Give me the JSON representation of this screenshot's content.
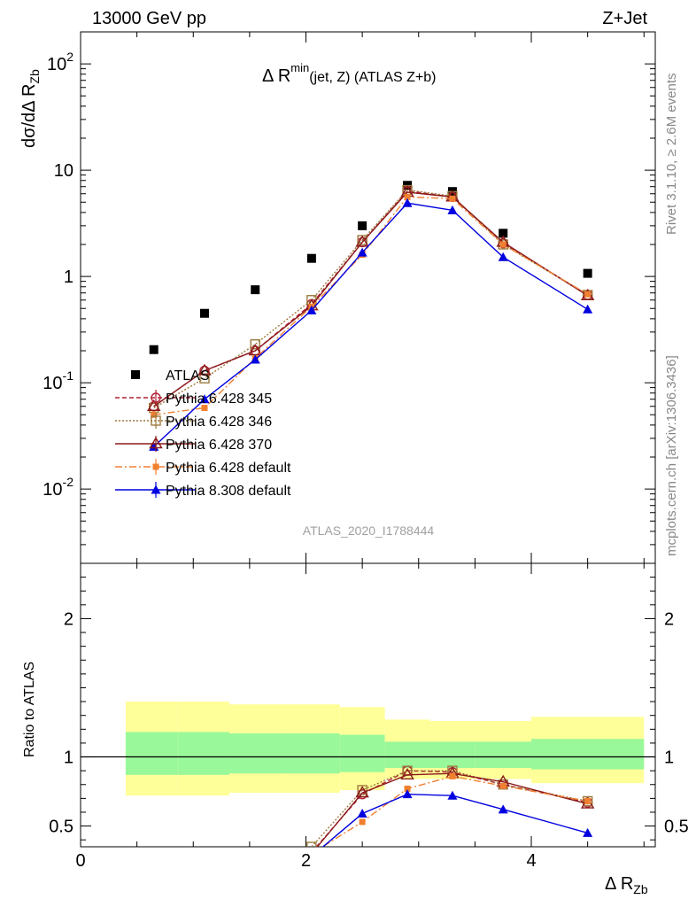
{
  "header": {
    "beam": "13000 GeV pp",
    "process": "Z+Jet"
  },
  "sidebar": {
    "rivet": "Rivet 3.1.10, ≥ 2.6M events",
    "source": "mcplots.cern.ch [arXiv:1306.3436]"
  },
  "colors": {
    "atlas": "#000000",
    "p345": "#b22234",
    "p346": "#9c7a3c",
    "p370": "#8b1a1a",
    "p6def": "#f08030",
    "p8def": "#0000e0",
    "band_inner": "#99f899",
    "band_outer": "#ffff99"
  },
  "chart_data": [
    {
      "type": "scatter",
      "title_main": "Δ R",
      "title_sup": "min",
      "title_rest": "(jet, Z) (ATLAS Z+b)",
      "ylabel_main": "dσ/dΔ R",
      "ylabel_sub": "Zb",
      "yscale": "log",
      "ylim": [
        0.002,
        200
      ],
      "xlim": [
        0,
        5.1
      ],
      "ytick_labels": [
        "10^-2",
        "10^-1",
        "1",
        "10",
        "10^2"
      ],
      "analysis_label": "ATLAS_2020_I1788444",
      "legend_placement": "bottom-left",
      "series": [
        {
          "name": "ATLAS",
          "key": "atlas",
          "marker": "square-filled",
          "x": [
            0.65,
            1.1,
            1.55,
            2.05,
            2.5,
            2.9,
            3.3,
            3.75,
            4.5
          ],
          "y": [
            0.205,
            0.45,
            0.75,
            1.48,
            3.0,
            7.2,
            6.3,
            2.55,
            1.07
          ]
        },
        {
          "name": "Pythia 6.428 345",
          "key": "p345",
          "marker": "circle-open",
          "dash": "5,3",
          "x": [
            0.65,
            1.1,
            1.55,
            2.05,
            2.5,
            2.9,
            3.3,
            3.75,
            4.5
          ],
          "y": [
            0.06,
            0.13,
            0.2,
            0.55,
            2.1,
            6.4,
            5.6,
            2.05,
            0.67
          ]
        },
        {
          "name": "Pythia 6.428 346",
          "key": "p346",
          "marker": "square-open",
          "dash": "2,2",
          "x": [
            0.65,
            1.1,
            1.55,
            2.05,
            2.5,
            2.9,
            3.3,
            3.75,
            4.5
          ],
          "y": [
            0.058,
            0.11,
            0.23,
            0.6,
            2.2,
            6.5,
            5.7,
            2.0,
            0.67
          ]
        },
        {
          "name": "Pythia 6.428 370",
          "key": "p370",
          "marker": "triangle-open",
          "dash": "",
          "x": [
            0.65,
            1.1,
            1.55,
            2.05,
            2.5,
            2.9,
            3.3,
            3.75,
            4.5
          ],
          "y": [
            0.06,
            0.13,
            0.2,
            0.53,
            2.1,
            6.2,
            5.6,
            2.1,
            0.66
          ]
        },
        {
          "name": "Pythia 6.428 default",
          "key": "p6def",
          "marker": "square-filled-small",
          "dash": "8,3,2,3",
          "x": [
            0.65,
            1.1,
            1.55,
            2.05,
            2.5,
            2.9,
            3.3,
            3.75,
            4.5
          ],
          "y": [
            0.05,
            0.058,
            0.17,
            0.52,
            1.6,
            5.6,
            5.4,
            2.0,
            0.68
          ]
        },
        {
          "name": "Pythia 8.308 default",
          "key": "p8def",
          "marker": "triangle-filled",
          "dash": "",
          "x": [
            0.65,
            1.1,
            1.55,
            2.05,
            2.5,
            2.9,
            3.3,
            3.75,
            4.5
          ],
          "y": [
            0.025,
            0.07,
            0.165,
            0.48,
            1.68,
            4.9,
            4.2,
            1.52,
            0.49
          ]
        }
      ]
    },
    {
      "type": "scatter",
      "ylabel": "Ratio to ATLAS",
      "xlabel_main": "Δ R",
      "xlabel_sub": "Zb",
      "ylim": [
        0.35,
        2.4
      ],
      "xlim": [
        0,
        5.1
      ],
      "yticks": [
        0.5,
        1,
        2
      ],
      "ytick_labels": [
        "0.5",
        "1",
        "2"
      ],
      "xticks": [
        0,
        2,
        4
      ],
      "xtick_labels": [
        "0",
        "2",
        "4"
      ],
      "bands": [
        {
          "x0": 0.4,
          "x1": 0.87,
          "inner": [
            0.87,
            1.18
          ],
          "outer": [
            0.72,
            1.4
          ]
        },
        {
          "x0": 0.87,
          "x1": 1.32,
          "inner": [
            0.87,
            1.18
          ],
          "outer": [
            0.72,
            1.4
          ]
        },
        {
          "x0": 1.32,
          "x1": 1.8,
          "inner": [
            0.88,
            1.17
          ],
          "outer": [
            0.74,
            1.38
          ]
        },
        {
          "x0": 1.8,
          "x1": 2.3,
          "inner": [
            0.88,
            1.17
          ],
          "outer": [
            0.74,
            1.38
          ]
        },
        {
          "x0": 2.3,
          "x1": 2.7,
          "inner": [
            0.89,
            1.16
          ],
          "outer": [
            0.76,
            1.36
          ]
        },
        {
          "x0": 2.7,
          "x1": 3.1,
          "inner": [
            0.92,
            1.11
          ],
          "outer": [
            0.84,
            1.27
          ]
        },
        {
          "x0": 3.1,
          "x1": 3.5,
          "inner": [
            0.92,
            1.11
          ],
          "outer": [
            0.84,
            1.26
          ]
        },
        {
          "x0": 3.5,
          "x1": 4.0,
          "inner": [
            0.92,
            1.11
          ],
          "outer": [
            0.84,
            1.26
          ]
        },
        {
          "x0": 4.0,
          "x1": 5.0,
          "inner": [
            0.91,
            1.13
          ],
          "outer": [
            0.81,
            1.29
          ]
        }
      ],
      "series": [
        {
          "name": "Pythia 6.428 345",
          "key": "p345",
          "marker": "circle-open",
          "dash": "5,3",
          "x": [
            2.05,
            2.5,
            2.9,
            3.3,
            3.75,
            4.5
          ],
          "y": [
            0.31,
            0.73,
            0.9,
            0.89,
            0.8,
            0.67
          ]
        },
        {
          "name": "Pythia 6.428 346",
          "key": "p346",
          "marker": "square-open",
          "dash": "2,2",
          "x": [
            2.05,
            2.5,
            2.9,
            3.3,
            3.75,
            4.5
          ],
          "y": [
            0.35,
            0.76,
            0.9,
            0.9,
            0.8,
            0.68
          ]
        },
        {
          "name": "Pythia 6.428 370",
          "key": "p370",
          "marker": "triangle-open",
          "dash": "",
          "x": [
            2.05,
            2.5,
            2.9,
            3.3,
            3.75,
            4.5
          ],
          "y": [
            0.3,
            0.74,
            0.87,
            0.88,
            0.82,
            0.66
          ]
        },
        {
          "name": "Pythia 6.428 default",
          "key": "p6def",
          "marker": "square-filled-small",
          "dash": "8,3,2,3",
          "x": [
            2.05,
            2.5,
            2.9,
            3.3,
            3.75,
            4.5
          ],
          "y": [
            0.3,
            0.53,
            0.77,
            0.86,
            0.79,
            0.68
          ]
        },
        {
          "name": "Pythia 8.308 default",
          "key": "p8def",
          "marker": "triangle-filled",
          "dash": "",
          "x": [
            2.05,
            2.5,
            2.9,
            3.3,
            3.75,
            4.5
          ],
          "y": [
            0.28,
            0.59,
            0.73,
            0.72,
            0.62,
            0.45
          ]
        }
      ]
    }
  ]
}
